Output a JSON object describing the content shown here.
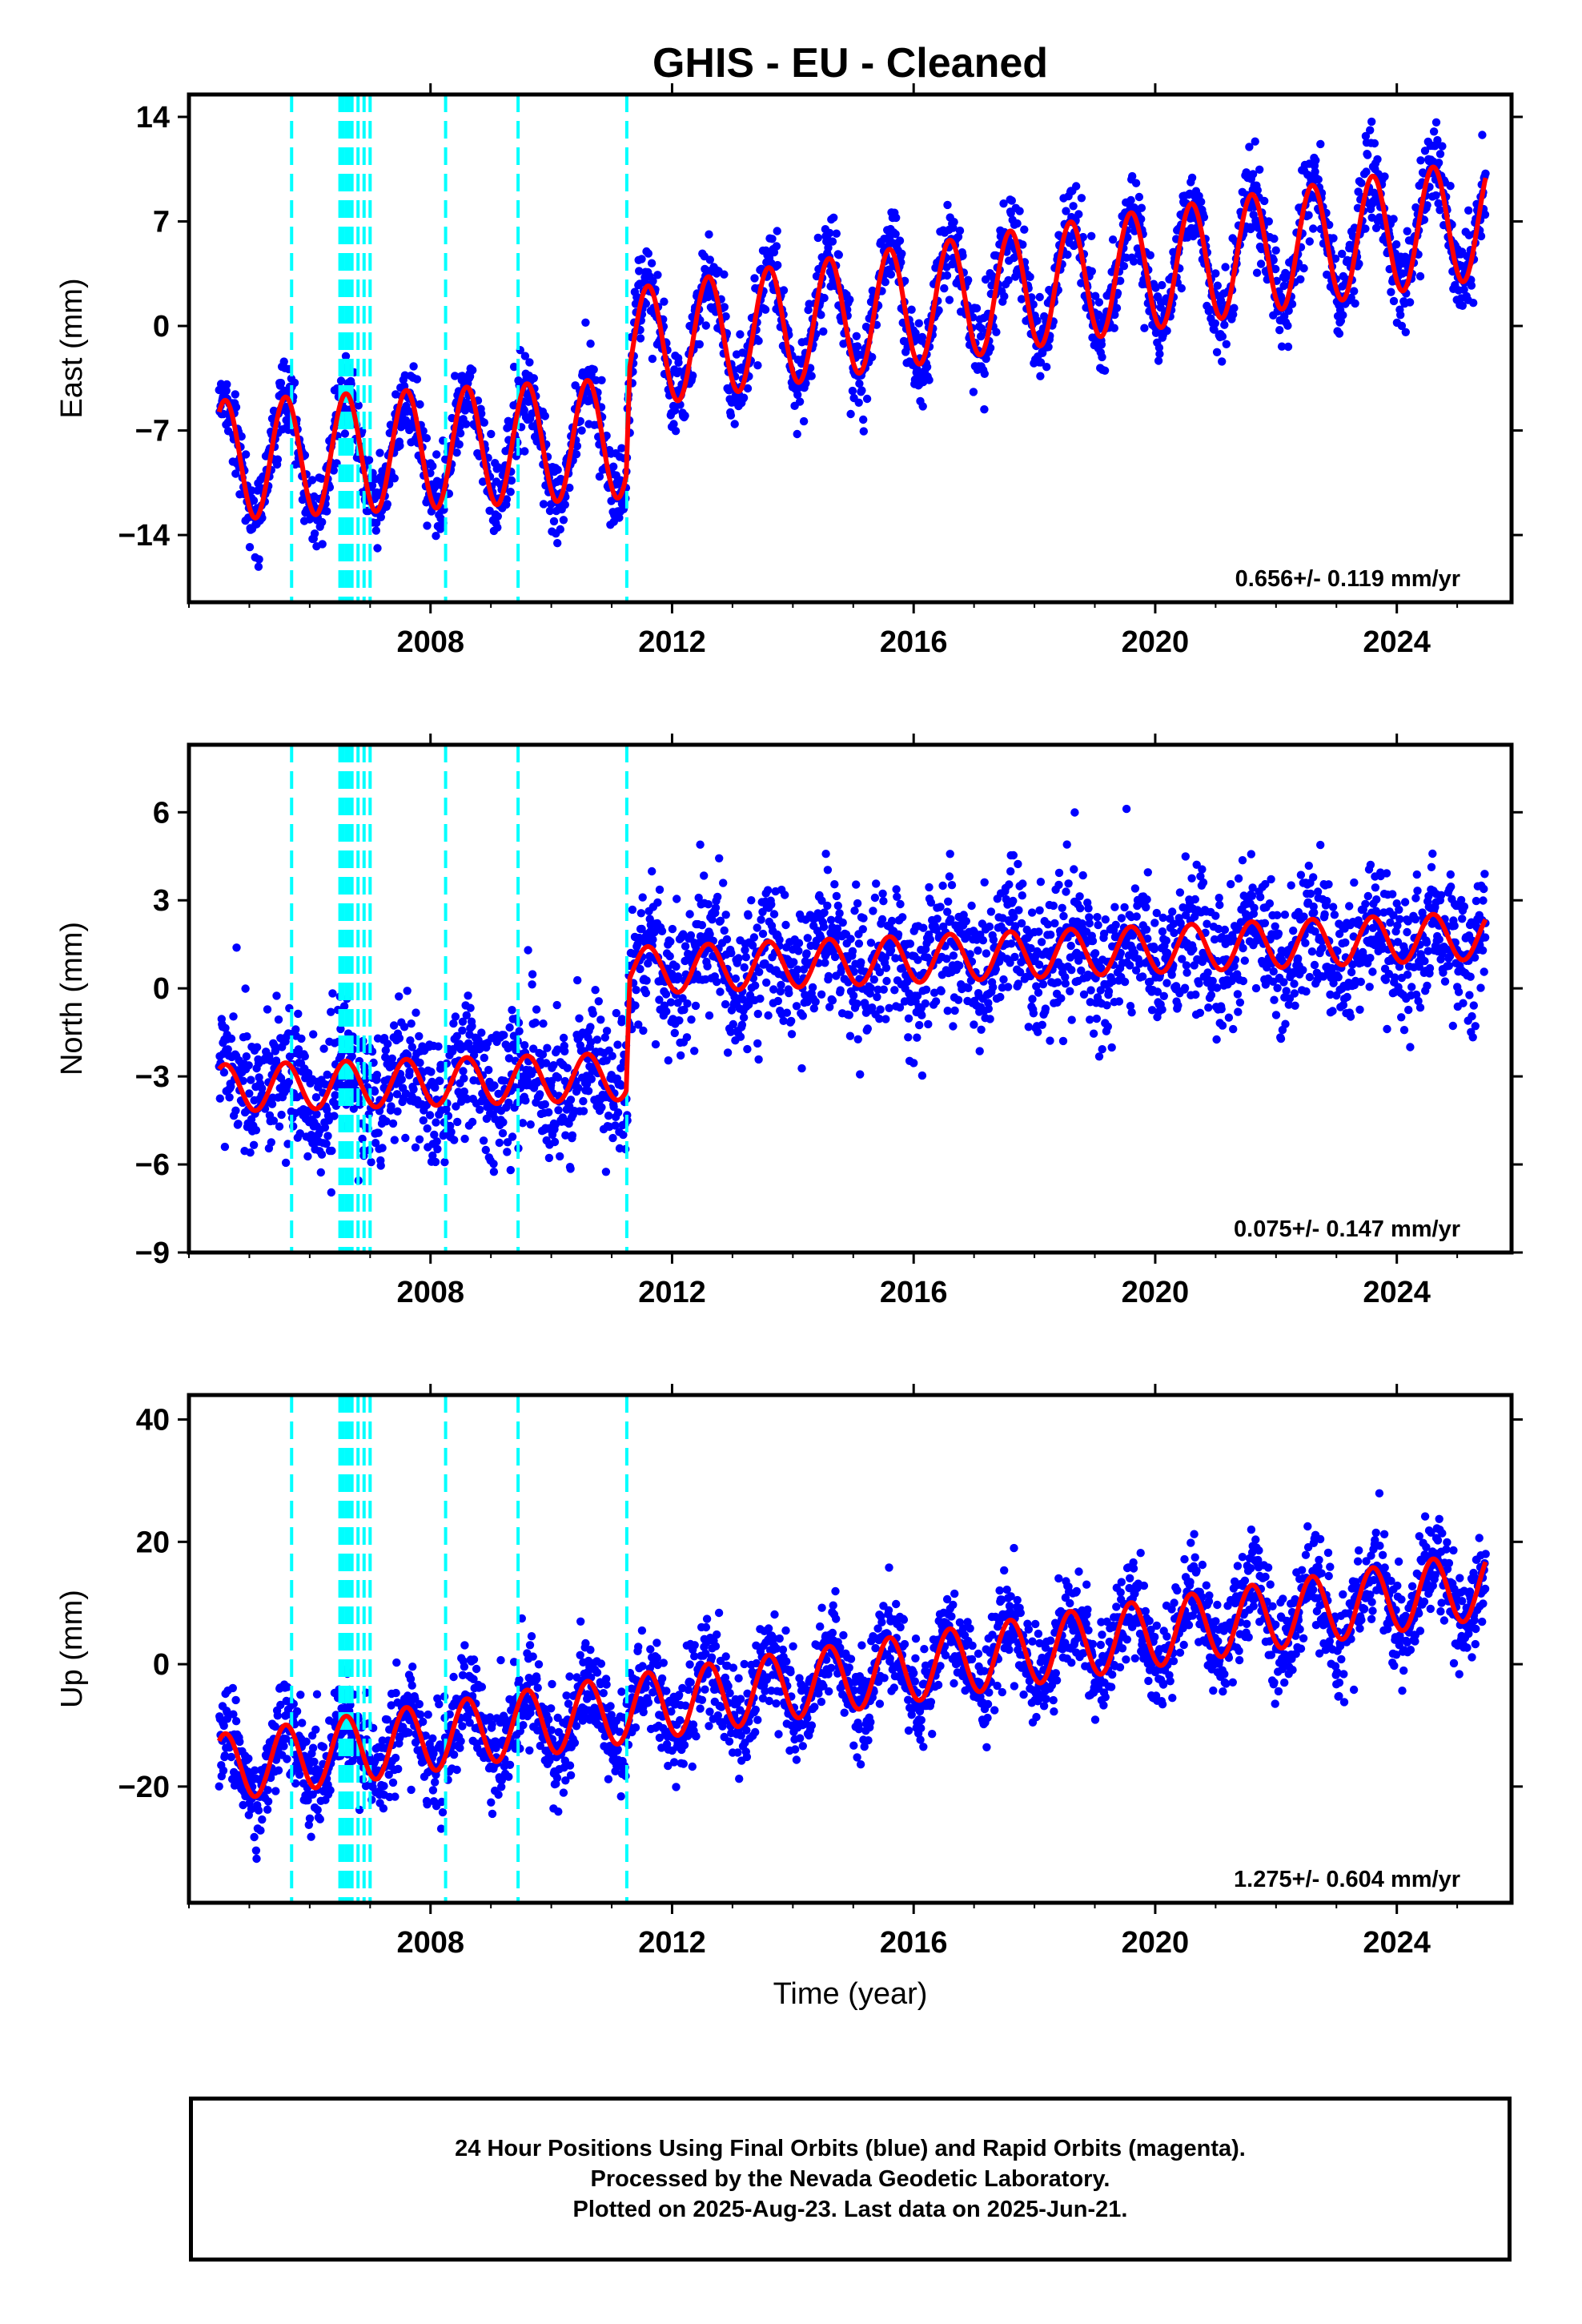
{
  "colors": {
    "final_orbits": "#0000ff",
    "model_fit": "#ff0000",
    "steps": "#00ffff",
    "frame": "#000000",
    "background": "#ffffff"
  },
  "chart_data": [
    {
      "type": "scatter",
      "title": "GHIS  - EU - Cleaned",
      "xlabel": "",
      "ylabel": "East (mm)",
      "xlim": [
        2004.0,
        2025.9
      ],
      "ylim": [
        -18.5,
        15.5
      ],
      "x_ticks": [
        2008,
        2012,
        2016,
        2020,
        2024
      ],
      "y_ticks": [
        -14,
        -7,
        0,
        7,
        14
      ],
      "y_tick_labels": [
        "−14",
        "−7",
        "0",
        "7",
        "14"
      ],
      "data_start": 2004.5,
      "data_end": 2025.47,
      "step_epochs": [
        2005.7,
        2006.5,
        2006.55,
        2006.6,
        2006.65,
        2006.7,
        2006.8,
        2006.9,
        2007.0,
        2008.25,
        2009.45,
        2011.25
      ],
      "model_knots": {
        "x": [
          2004.5,
          2011.24,
          2011.3,
          2025.5
        ],
        "y": [
          -9.0,
          -7.5,
          -1.5,
          7.2
        ]
      },
      "annual_amplitude": 4.0,
      "noise_sd": 1.4,
      "n_points": 2600,
      "rate_annotation": "0.656+/- 0.119 mm/yr",
      "grid": false,
      "legend": "none"
    },
    {
      "type": "scatter",
      "xlabel": "",
      "ylabel": "North (mm)",
      "xlim": [
        2004.0,
        2025.9
      ],
      "ylim": [
        -9.0,
        8.3
      ],
      "x_ticks": [
        2008,
        2012,
        2016,
        2020,
        2024
      ],
      "y_ticks": [
        -9,
        -6,
        -3,
        0,
        3,
        6
      ],
      "y_tick_labels": [
        "−9",
        "−6",
        "−3",
        "0",
        "3",
        "6"
      ],
      "data_start": 2004.5,
      "data_end": 2025.47,
      "step_epochs": [
        2005.7,
        2006.5,
        2006.55,
        2006.6,
        2006.65,
        2006.7,
        2006.8,
        2006.9,
        2007.0,
        2008.25,
        2009.45,
        2011.25
      ],
      "model_knots": {
        "x": [
          2004.5,
          2011.24,
          2011.3,
          2025.5
        ],
        "y": [
          -3.4,
          -3.0,
          0.6,
          1.8
        ]
      },
      "annual_amplitude": 0.8,
      "noise_sd": 1.2,
      "n_points": 2600,
      "rate_annotation": "0.075+/- 0.147 mm/yr",
      "grid": false,
      "legend": "none"
    },
    {
      "type": "scatter",
      "xlabel": "Time (year)",
      "ylabel": "Up (mm)",
      "xlim": [
        2004.0,
        2025.9
      ],
      "ylim": [
        -39.0,
        44.0
      ],
      "x_ticks": [
        2008,
        2012,
        2016,
        2020,
        2024
      ],
      "y_ticks": [
        -20,
        0,
        20,
        40
      ],
      "y_tick_labels": [
        "−20",
        "0",
        "20",
        "40"
      ],
      "data_start": 2004.5,
      "data_end": 2025.47,
      "step_epochs": [
        2005.7,
        2006.5,
        2006.55,
        2006.6,
        2006.65,
        2006.7,
        2006.8,
        2006.9,
        2007.0,
        2008.25,
        2009.45,
        2011.25
      ],
      "model_knots": {
        "x": [
          2004.5,
          2025.5
        ],
        "y": [
          -17.0,
          13.0
        ]
      },
      "annual_amplitude": 5.5,
      "noise_sd": 4.0,
      "n_points": 2600,
      "rate_annotation": "1.275+/- 0.604 mm/yr",
      "grid": false,
      "legend": "none"
    }
  ],
  "footer": {
    "line1": "24 Hour Positions Using Final Orbits (blue) and Rapid Orbits (magenta).",
    "line2": "Processed by the Nevada Geodetic Laboratory.",
    "line3": "Plotted on 2025-Aug-23. Last data on 2025-Jun-21."
  }
}
